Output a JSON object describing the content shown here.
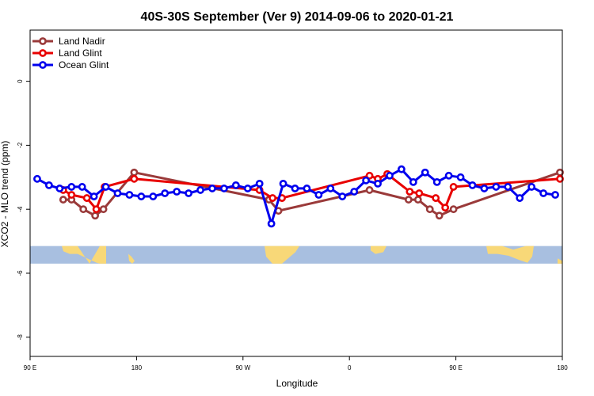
{
  "chart_data": {
    "type": "line",
    "title": "40S-30S September (Ver 9)   2014-09-06 to 2020-01-21",
    "xlabel": "Longitude",
    "ylabel": "XCO2 - MLO trend (ppm)",
    "xlim": [
      90,
      540
    ],
    "ylim": [
      -8.6,
      1.6
    ],
    "x_ticks": [
      {
        "value": 90,
        "label": "90 E"
      },
      {
        "value": 180,
        "label": "180"
      },
      {
        "value": 270,
        "label": "90 W"
      },
      {
        "value": 360,
        "label": "0"
      },
      {
        "value": 450,
        "label": "90 E"
      },
      {
        "value": 540,
        "label": "180"
      }
    ],
    "y_ticks": [
      {
        "value": 0,
        "label": "0"
      },
      {
        "value": -2,
        "label": "-2"
      },
      {
        "value": -4,
        "label": "-4"
      },
      {
        "value": -6,
        "label": "-6"
      },
      {
        "value": -8,
        "label": "-8"
      }
    ],
    "map_strip": {
      "y_top": -5.15,
      "y_bottom": -5.7,
      "ocean_color": "#a8bfe0",
      "land_color": "#f8d878"
    },
    "legend_position": "top-left",
    "series": [
      {
        "name": "Land Nadir",
        "color": "#9a3a3a",
        "points": [
          [
            118,
            -3.7
          ],
          [
            125,
            -3.7
          ],
          [
            135,
            -4.0
          ],
          [
            145,
            -4.2
          ],
          [
            152,
            -4.0
          ],
          [
            178,
            -2.85
          ],
          [
            292,
            -3.7
          ],
          [
            300,
            -4.05
          ],
          [
            377,
            -3.4
          ],
          [
            410,
            -3.7
          ],
          [
            418,
            -3.7
          ],
          [
            428,
            -4.0
          ],
          [
            436,
            -4.2
          ],
          [
            448,
            -4.0
          ],
          [
            538,
            -2.85
          ]
        ]
      },
      {
        "name": "Land Glint",
        "color": "#e80000",
        "points": [
          [
            118,
            -3.4
          ],
          [
            125,
            -3.55
          ],
          [
            138,
            -3.65
          ],
          [
            146,
            -4.0
          ],
          [
            153,
            -3.3
          ],
          [
            178,
            -3.05
          ],
          [
            284,
            -3.4
          ],
          [
            295,
            -3.65
          ],
          [
            303,
            -3.65
          ],
          [
            377,
            -2.95
          ],
          [
            384,
            -3.05
          ],
          [
            392,
            -2.9
          ],
          [
            411,
            -3.45
          ],
          [
            419,
            -3.5
          ],
          [
            433,
            -3.65
          ],
          [
            441,
            -3.95
          ],
          [
            448,
            -3.3
          ],
          [
            538,
            -3.05
          ]
        ]
      },
      {
        "name": "Ocean Glint",
        "color": "#0000ee",
        "points": [
          [
            96,
            -3.05
          ],
          [
            106,
            -3.25
          ],
          [
            115,
            -3.35
          ],
          [
            125,
            -3.3
          ],
          [
            134,
            -3.3
          ],
          [
            144,
            -3.6
          ],
          [
            154,
            -3.3
          ],
          [
            164,
            -3.5
          ],
          [
            174,
            -3.55
          ],
          [
            184,
            -3.6
          ],
          [
            194,
            -3.6
          ],
          [
            204,
            -3.5
          ],
          [
            214,
            -3.45
          ],
          [
            224,
            -3.5
          ],
          [
            234,
            -3.4
          ],
          [
            244,
            -3.35
          ],
          [
            254,
            -3.35
          ],
          [
            264,
            -3.25
          ],
          [
            274,
            -3.35
          ],
          [
            284,
            -3.2
          ],
          [
            294,
            -4.45
          ],
          [
            304,
            -3.2
          ],
          [
            314,
            -3.35
          ],
          [
            324,
            -3.35
          ],
          [
            334,
            -3.55
          ],
          [
            344,
            -3.35
          ],
          [
            354,
            -3.6
          ],
          [
            364,
            -3.45
          ],
          [
            374,
            -3.1
          ],
          [
            384,
            -3.2
          ],
          [
            394,
            -2.95
          ],
          [
            404,
            -2.75
          ],
          [
            414,
            -3.15
          ],
          [
            424,
            -2.85
          ],
          [
            434,
            -3.15
          ],
          [
            444,
            -2.95
          ],
          [
            454,
            -3.0
          ],
          [
            464,
            -3.25
          ],
          [
            474,
            -3.35
          ],
          [
            484,
            -3.3
          ],
          [
            494,
            -3.3
          ],
          [
            504,
            -3.65
          ],
          [
            514,
            -3.3
          ],
          [
            524,
            -3.5
          ],
          [
            534,
            -3.55
          ]
        ]
      }
    ]
  }
}
